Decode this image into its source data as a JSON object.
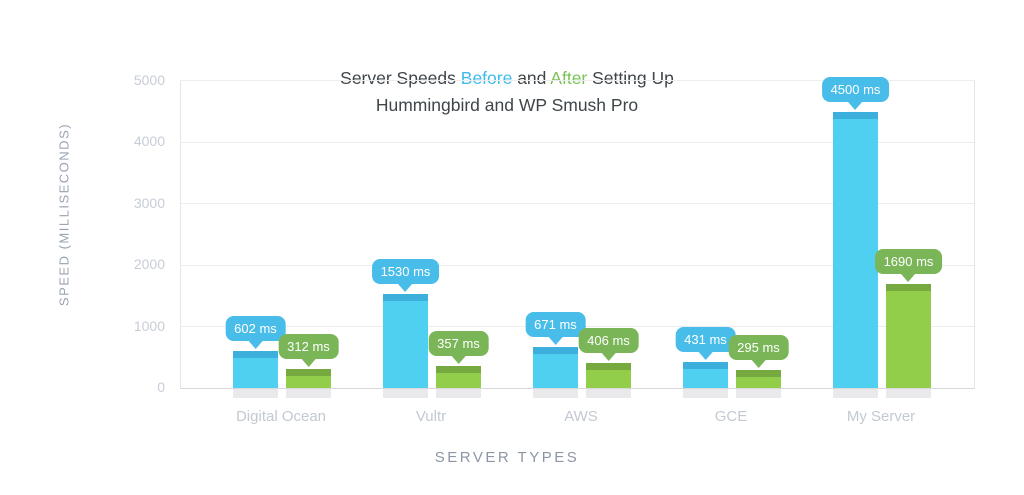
{
  "title": {
    "part1": "Server Speeds ",
    "before": "Before",
    "part2": " and ",
    "after": "After",
    "part3": " Setting Up",
    "line2": "Hummingbird and WP Smush Pro"
  },
  "axes": {
    "y_label": "SPEED (MILLISECONDS)",
    "x_label": "SERVER TYPES"
  },
  "colors": {
    "before_word": "#3fbbea",
    "after_word": "#7cc257",
    "title_text": "#3e464a",
    "tick_text": "#c7cdd6",
    "axis_label_text": "#9aa3b2",
    "gridline": "#ededf0",
    "bar_base_shadow": "#e9e9eb",
    "background": "#ffffff"
  },
  "chart_data": {
    "type": "bar",
    "title": "Server Speeds Before and After Setting Up Hummingbird and WP Smush Pro",
    "xlabel": "SERVER TYPES",
    "ylabel": "SPEED (MILLISECONDS)",
    "ylim": [
      0,
      5000
    ],
    "y_ticks": [
      0,
      1000,
      2000,
      3000,
      4000,
      5000
    ],
    "grid": true,
    "legend_position": "none (series named by colored words in title)",
    "categories": [
      "Digital Ocean",
      "Vultr",
      "AWS",
      "GCE",
      "My Server"
    ],
    "series": [
      {
        "name": "Before",
        "bar_color": "#4fd0f0",
        "cap_color": "#3dafdd",
        "label_bg": "#49bdea",
        "values": [
          602,
          1530,
          671,
          431,
          4500
        ],
        "labels": [
          "602 ms",
          "1530 ms",
          "671 ms",
          "431 ms",
          "4500 ms"
        ]
      },
      {
        "name": "After",
        "bar_color": "#92ce49",
        "cap_color": "#76aa40",
        "label_bg": "#7ab658",
        "values": [
          312,
          357,
          406,
          295,
          1690
        ],
        "labels": [
          "312 ms",
          "357 ms",
          "406 ms",
          "295 ms",
          "1690 ms"
        ]
      }
    ]
  }
}
